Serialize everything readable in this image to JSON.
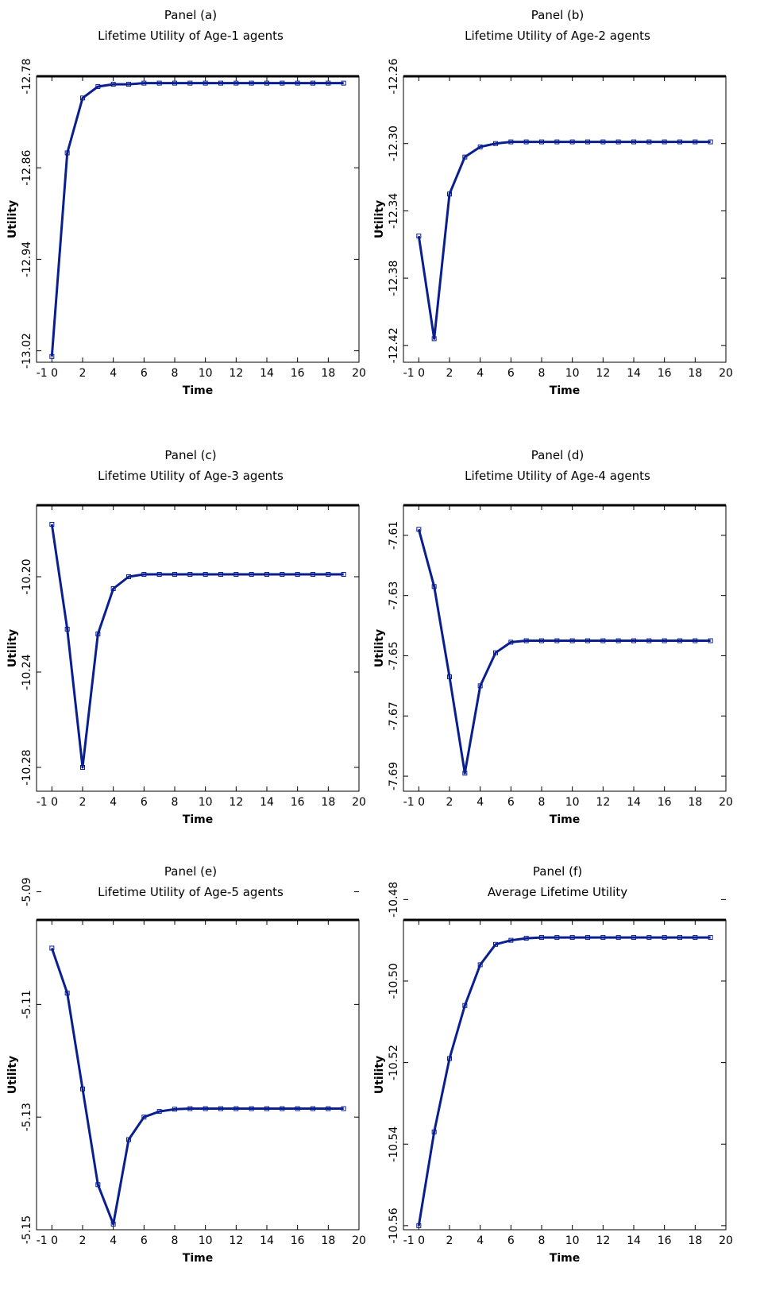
{
  "chart_data": [
    {
      "type": "line",
      "panel_label": "Panel (a)",
      "title": "Lifetime Utility of Age-1 agents",
      "xlabel": "Time",
      "ylabel": "Utility",
      "xlim": [
        -1,
        20
      ],
      "ylim": [
        -13.03,
        -12.78
      ],
      "xticks": [
        0,
        2,
        4,
        6,
        8,
        10,
        12,
        14,
        16,
        18,
        20
      ],
      "xtick_labels": [
        "-1 0",
        "2",
        "4",
        "6",
        "8",
        "10",
        "12",
        "14",
        "16",
        "18",
        "20"
      ],
      "yticks": [
        -13.02,
        -12.94,
        -12.86,
        -12.78
      ],
      "ytick_labels": [
        "-13.02",
        "-12.94",
        "-12.86",
        "-12.78"
      ],
      "grid": false,
      "series": [
        {
          "color": "#0a1f8f",
          "x": [
            0,
            1,
            2,
            3,
            4,
            5,
            6,
            7,
            8,
            9,
            10,
            11,
            12,
            13,
            14,
            15,
            16,
            17,
            18,
            19
          ],
          "y": [
            -13.025,
            -12.847,
            -12.799,
            -12.789,
            -12.787,
            -12.787,
            -12.786,
            -12.786,
            -12.786,
            -12.786,
            -12.786,
            -12.786,
            -12.786,
            -12.786,
            -12.786,
            -12.786,
            -12.786,
            -12.786,
            -12.786,
            -12.786
          ]
        }
      ]
    },
    {
      "type": "line",
      "panel_label": "Panel (b)",
      "title": "Lifetime Utility of Age-2 agents",
      "xlabel": "Time",
      "ylabel": "Utility",
      "xlim": [
        -1,
        20
      ],
      "ylim": [
        -12.43,
        -12.26
      ],
      "xticks": [
        0,
        2,
        4,
        6,
        8,
        10,
        12,
        14,
        16,
        18,
        20
      ],
      "xtick_labels": [
        "-1 0",
        "2",
        "4",
        "6",
        "8",
        "10",
        "12",
        "14",
        "16",
        "18",
        "20"
      ],
      "yticks": [
        -12.42,
        -12.38,
        -12.34,
        -12.3,
        -12.26
      ],
      "ytick_labels": [
        "-12.42",
        "-12.38",
        "-12.34",
        "-12.30",
        "-12.26"
      ],
      "grid": false,
      "series": [
        {
          "color": "#0a1f8f",
          "x": [
            0,
            1,
            2,
            3,
            4,
            5,
            6,
            7,
            8,
            9,
            10,
            11,
            12,
            13,
            14,
            15,
            16,
            17,
            18,
            19
          ],
          "y": [
            -12.355,
            -12.416,
            -12.33,
            -12.308,
            -12.302,
            -12.3,
            -12.299,
            -12.299,
            -12.299,
            -12.299,
            -12.299,
            -12.299,
            -12.299,
            -12.299,
            -12.299,
            -12.299,
            -12.299,
            -12.299,
            -12.299,
            -12.299
          ]
        }
      ]
    },
    {
      "type": "line",
      "panel_label": "Panel (c)",
      "title": "Lifetime Utility of Age-3 agents",
      "xlabel": "Time",
      "ylabel": "Utility",
      "xlim": [
        -1,
        20
      ],
      "ylim": [
        -10.29,
        -10.17
      ],
      "xticks": [
        0,
        2,
        4,
        6,
        8,
        10,
        12,
        14,
        16,
        18,
        20
      ],
      "xtick_labels": [
        "-1 0",
        "2",
        "4",
        "6",
        "8",
        "10",
        "12",
        "14",
        "16",
        "18",
        "20"
      ],
      "yticks": [
        -10.28,
        -10.24,
        -10.2
      ],
      "ytick_labels": [
        "-10.28",
        "-10.24",
        "-10.20"
      ],
      "grid": false,
      "series": [
        {
          "color": "#0a1f8f",
          "x": [
            0,
            1,
            2,
            3,
            4,
            5,
            6,
            7,
            8,
            9,
            10,
            11,
            12,
            13,
            14,
            15,
            16,
            17,
            18,
            19
          ],
          "y": [
            -10.178,
            -10.222,
            -10.28,
            -10.224,
            -10.205,
            -10.2,
            -10.199,
            -10.199,
            -10.199,
            -10.199,
            -10.199,
            -10.199,
            -10.199,
            -10.199,
            -10.199,
            -10.199,
            -10.199,
            -10.199,
            -10.199,
            -10.199
          ]
        }
      ]
    },
    {
      "type": "line",
      "panel_label": "Panel (d)",
      "title": "Lifetime Utility of Age-4 agents",
      "xlabel": "Time",
      "ylabel": "Utility",
      "xlim": [
        -1,
        20
      ],
      "ylim": [
        -7.695,
        -7.6
      ],
      "xticks": [
        0,
        2,
        4,
        6,
        8,
        10,
        12,
        14,
        16,
        18,
        20
      ],
      "xtick_labels": [
        "-1 0",
        "2",
        "4",
        "6",
        "8",
        "10",
        "12",
        "14",
        "16",
        "18",
        "20"
      ],
      "yticks": [
        -7.69,
        -7.67,
        -7.65,
        -7.63,
        -7.61
      ],
      "ytick_labels": [
        "-7.69",
        "-7.67",
        "-7.65",
        "-7.63",
        "-7.61"
      ],
      "grid": false,
      "series": [
        {
          "color": "#0a1f8f",
          "x": [
            0,
            1,
            2,
            3,
            4,
            5,
            6,
            7,
            8,
            9,
            10,
            11,
            12,
            13,
            14,
            15,
            16,
            17,
            18,
            19
          ],
          "y": [
            -7.608,
            -7.627,
            -7.657,
            -7.689,
            -7.66,
            -7.649,
            -7.6455,
            -7.645,
            -7.645,
            -7.645,
            -7.645,
            -7.645,
            -7.645,
            -7.645,
            -7.645,
            -7.645,
            -7.645,
            -7.645,
            -7.645,
            -7.645
          ]
        }
      ]
    },
    {
      "type": "line",
      "panel_label": "Panel (e)",
      "title": "Lifetime Utility of Age-5 agents",
      "xlabel": "Time",
      "ylabel": "Utility",
      "xlim": [
        -1,
        20
      ],
      "ylim": [
        -5.15,
        -5.095
      ],
      "xticks": [
        0,
        2,
        4,
        6,
        8,
        10,
        12,
        14,
        16,
        18,
        20
      ],
      "xtick_labels": [
        "-1 0",
        "2",
        "4",
        "6",
        "8",
        "10",
        "12",
        "14",
        "16",
        "18",
        "20"
      ],
      "yticks": [
        -5.15,
        -5.13,
        -5.11,
        -5.09
      ],
      "ytick_labels": [
        "-5.15",
        "-5.13",
        "-5.11",
        "-5.09"
      ],
      "grid": false,
      "series": [
        {
          "color": "#0a1f8f",
          "x": [
            0,
            1,
            2,
            3,
            4,
            5,
            6,
            7,
            8,
            9,
            10,
            11,
            12,
            13,
            14,
            15,
            16,
            17,
            18,
            19
          ],
          "y": [
            -5.1,
            -5.108,
            -5.125,
            -5.142,
            -5.149,
            -5.134,
            -5.13,
            -5.129,
            -5.1286,
            -5.1285,
            -5.1285,
            -5.1285,
            -5.1285,
            -5.1285,
            -5.1285,
            -5.1285,
            -5.1285,
            -5.1285,
            -5.1285,
            -5.1285
          ]
        }
      ]
    },
    {
      "type": "line",
      "panel_label": "Panel (f)",
      "title": "Average Lifetime Utility",
      "xlabel": "Time",
      "ylabel": "Utility",
      "xlim": [
        -1,
        20
      ],
      "ylim": [
        -10.561,
        -10.485
      ],
      "xticks": [
        0,
        2,
        4,
        6,
        8,
        10,
        12,
        14,
        16,
        18,
        20
      ],
      "xtick_labels": [
        "-1 0",
        "2",
        "4",
        "6",
        "8",
        "10",
        "12",
        "14",
        "16",
        "18",
        "20"
      ],
      "yticks": [
        -10.56,
        -10.54,
        -10.52,
        -10.5,
        -10.48
      ],
      "ytick_labels": [
        "-10.56",
        "-10.54",
        "-10.52",
        "-10.50",
        "-10.48"
      ],
      "grid": false,
      "series": [
        {
          "color": "#0a1f8f",
          "x": [
            0,
            1,
            2,
            3,
            4,
            5,
            6,
            7,
            8,
            9,
            10,
            11,
            12,
            13,
            14,
            15,
            16,
            17,
            18,
            19
          ],
          "y": [
            -10.56,
            -10.537,
            -10.519,
            -10.506,
            -10.496,
            -10.491,
            -10.49,
            -10.4895,
            -10.4893,
            -10.4893,
            -10.4893,
            -10.4893,
            -10.4893,
            -10.4893,
            -10.4893,
            -10.4893,
            -10.4893,
            -10.4893,
            -10.4893,
            -10.4893
          ]
        }
      ]
    }
  ]
}
